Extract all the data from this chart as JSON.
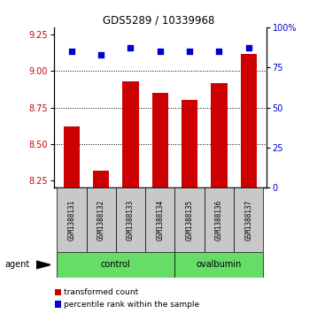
{
  "title": "GDS5289 / 10339968",
  "samples": [
    "GSM1388131",
    "GSM1388132",
    "GSM1388133",
    "GSM1388134",
    "GSM1388135",
    "GSM1388136",
    "GSM1388137"
  ],
  "transformed_counts": [
    8.62,
    8.32,
    8.93,
    8.85,
    8.8,
    8.92,
    9.12
  ],
  "percentile_ranks": [
    85,
    83,
    87,
    85,
    85,
    85,
    87
  ],
  "groups": [
    "control",
    "control",
    "control",
    "control",
    "ovalbumin",
    "ovalbumin",
    "ovalbumin"
  ],
  "bar_color": "#CC0000",
  "dot_color": "#0000CC",
  "ylim_left": [
    8.2,
    9.3
  ],
  "ylim_right": [
    0,
    100
  ],
  "yticks_left": [
    8.25,
    8.5,
    8.75,
    9.0,
    9.25
  ],
  "yticks_right": [
    0,
    25,
    50,
    75,
    100
  ],
  "ytick_labels_right": [
    "0",
    "25",
    "50",
    "75",
    "100%"
  ],
  "grid_values": [
    8.5,
    8.75,
    9.0
  ],
  "bar_width": 0.55,
  "legend_items": [
    {
      "label": "transformed count",
      "color": "#CC0000"
    },
    {
      "label": "percentile rank within the sample",
      "color": "#0000CC"
    }
  ],
  "agent_label": "agent",
  "group_label_control": "control",
  "group_label_ovalbumin": "ovalbumin",
  "green_color": "#66DD66",
  "gray_color": "#C8C8C8"
}
